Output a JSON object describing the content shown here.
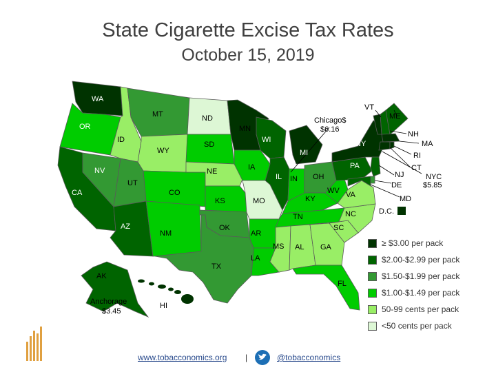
{
  "title": "State Cigarette Excise Tax Rates",
  "subtitle": "October 15, 2019",
  "colors": {
    "tier1": "#003300",
    "tier2": "#006400",
    "tier3": "#339933",
    "tier4": "#00cc00",
    "tier5": "#99ee66",
    "tier6": "#ddf7d5",
    "ocean": "#ffffff"
  },
  "states": {
    "WA": "WA",
    "OR": "OR",
    "CA": "CA",
    "ID": "ID",
    "NV": "NV",
    "UT": "UT",
    "AZ": "AZ",
    "MT": "MT",
    "WY": "WY",
    "CO": "CO",
    "NM": "NM",
    "ND": "ND",
    "SD": "SD",
    "NE": "NE",
    "KS": "KS",
    "OK": "OK",
    "TX": "TX",
    "MN": "MN",
    "IA": "IA",
    "MO": "MO",
    "AR": "AR",
    "LA": "LA",
    "WI": "WI",
    "IL": "IL",
    "MI": "MI",
    "IN": "IN",
    "OH": "OH",
    "KY": "KY",
    "TN": "TN",
    "MS": "MS",
    "AL": "AL",
    "GA": "GA",
    "FL": "FL",
    "SC": "SC",
    "NC": "NC",
    "VA": "VA",
    "WV": "WV",
    "PA": "PA",
    "NY": "NY",
    "VT": "VT",
    "ME": "ME",
    "NH": "NH",
    "MA": "MA",
    "RI": "RI",
    "CT": "CT",
    "NJ": "NJ",
    "DE": "DE",
    "MD": "MD",
    "AK": "AK",
    "HI": "HI"
  },
  "callouts": {
    "chicago_line1": "Chicago$",
    "chicago_line2": "$6.16",
    "nyc_line1": "NYC",
    "nyc_line2": "$5.85",
    "anchorage_line1": "Anchorage",
    "anchorage_line2": "$3.45",
    "dc": "D.C."
  },
  "legend": [
    {
      "label": "≥ $3.00 per pack",
      "color": "#003300"
    },
    {
      "label": "$2.00-$2.99 per pack",
      "color": "#006400"
    },
    {
      "label": "$1.50-$1.99 per pack",
      "color": "#339933"
    },
    {
      "label": "$1.00-$1.49 per pack",
      "color": "#00cc00"
    },
    {
      "label": "50-99 cents per pack",
      "color": "#99ee66"
    },
    {
      "label": "<50 cents per pack",
      "color": "#ddf7d5"
    }
  ],
  "footer": {
    "website": "www.tobacconomics.org",
    "separator": "|",
    "twitter": "@tobacconomics"
  }
}
